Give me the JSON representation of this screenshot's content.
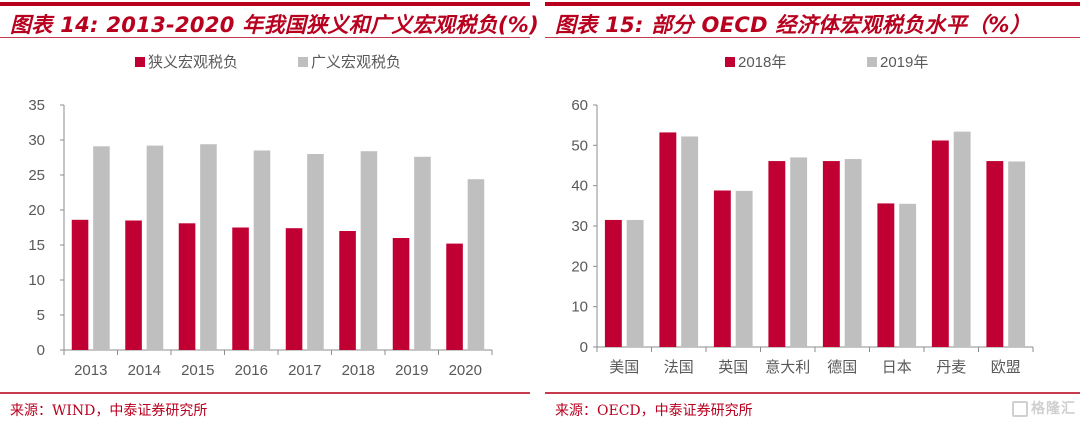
{
  "left": {
    "title": "图表 14: 2013-2020 年我国狭义和广义宏观税负(%)",
    "source": "来源：WIND，中泰证券研究所"
  },
  "right": {
    "title": "图表 15:  部分 OECD 经济体宏观税负水平（%）",
    "source": "来源：OECD，中泰证券研究所",
    "watermark": "格隆汇"
  },
  "colors": {
    "brand": "#b8001f",
    "series1": "#c00033",
    "series2": "#bfbfbf",
    "axis": "#8c8c8c",
    "tick_text": "#595959"
  },
  "chart_data": [
    {
      "type": "bar",
      "title": "2013-2020 年我国狭义和广义宏观税负(%)",
      "categories": [
        "2013",
        "2014",
        "2015",
        "2016",
        "2017",
        "2018",
        "2019",
        "2020"
      ],
      "series": [
        {
          "name": "狭义宏观税负",
          "values": [
            18.6,
            18.5,
            18.1,
            17.5,
            17.4,
            17.0,
            16.0,
            15.2
          ]
        },
        {
          "name": "广义宏观税负",
          "values": [
            29.1,
            29.2,
            29.4,
            28.5,
            28.0,
            28.4,
            27.6,
            24.4
          ]
        }
      ],
      "xlabel": "",
      "ylabel": "",
      "ylim": [
        0,
        35
      ],
      "yticks": [
        0,
        5,
        10,
        15,
        20,
        25,
        30,
        35
      ],
      "grid": false,
      "legend": "top-center"
    },
    {
      "type": "bar",
      "title": "部分 OECD 经济体宏观税负水平（%）",
      "categories": [
        "美国",
        "法国",
        "英国",
        "意大利",
        "德国",
        "日本",
        "丹麦",
        "欧盟"
      ],
      "series": [
        {
          "name": "2018年",
          "values": [
            31.5,
            53.2,
            38.8,
            46.1,
            46.1,
            35.6,
            51.2,
            46.1
          ]
        },
        {
          "name": "2019年",
          "values": [
            31.5,
            52.2,
            38.7,
            47.0,
            46.6,
            35.5,
            53.4,
            46.0
          ]
        }
      ],
      "xlabel": "",
      "ylabel": "",
      "ylim": [
        0,
        60
      ],
      "yticks": [
        0,
        10,
        20,
        30,
        40,
        50,
        60
      ],
      "grid": false,
      "legend": "top-center"
    }
  ]
}
